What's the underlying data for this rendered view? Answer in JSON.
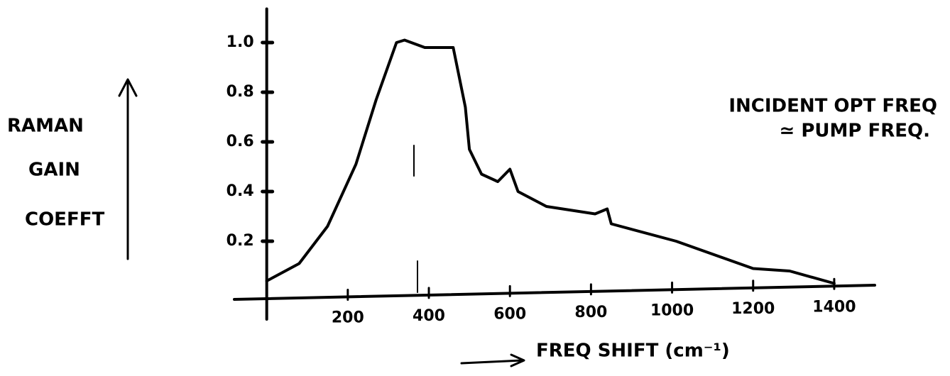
{
  "chart_data": {
    "type": "line",
    "y_label": [
      "RAMAN",
      "GAIN",
      "COEFFT"
    ],
    "x_label": "FREQ SHIFT (cm⁻¹)",
    "annotation": [
      "INCIDENT OPT FREQ",
      "≃ PUMP FREQ."
    ],
    "x": [
      0,
      80,
      150,
      220,
      270,
      320,
      340,
      390,
      460,
      490,
      500,
      530,
      570,
      600,
      620,
      690,
      810,
      840,
      850,
      1010,
      1200,
      1290,
      1400
    ],
    "values": [
      0.04,
      0.11,
      0.26,
      0.51,
      0.77,
      1.0,
      1.01,
      0.98,
      0.98,
      0.74,
      0.57,
      0.47,
      0.44,
      0.49,
      0.4,
      0.34,
      0.31,
      0.33,
      0.27,
      0.2,
      0.09,
      0.08,
      0.03
    ],
    "color": "#000000",
    "xlim": [
      -80,
      1500
    ],
    "ylim": [
      0,
      1.15
    ],
    "xticks": [
      200,
      400,
      600,
      800,
      1000,
      1200,
      1400
    ],
    "yticks": [
      0.2,
      0.4,
      0.6,
      0.8,
      {
        "value": 1,
        "label": "1.0"
      }
    ],
    "grid": false
  }
}
